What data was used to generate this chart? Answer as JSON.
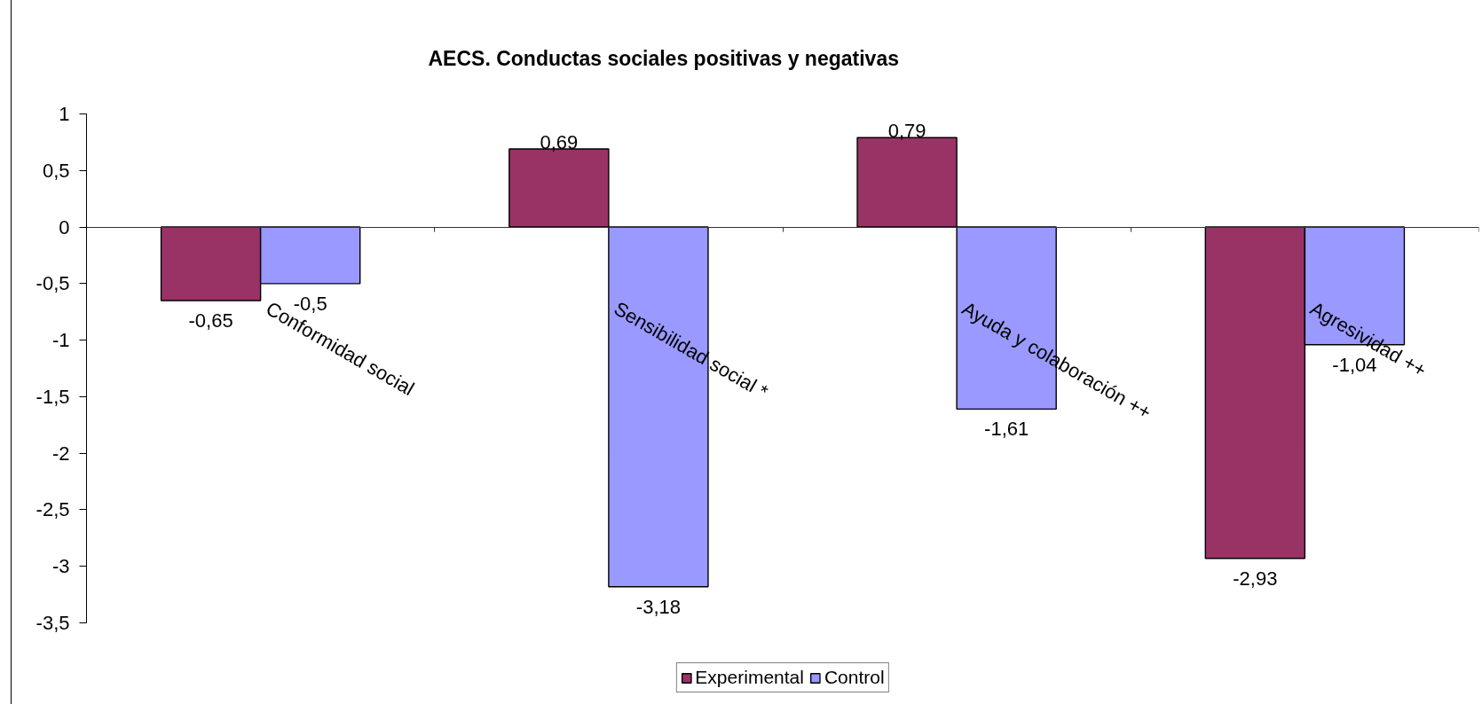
{
  "chart_data": {
    "type": "bar",
    "title": "AECS. Conductas sociales positivas y negativas",
    "categories": [
      "Conformidad social",
      "Sensibilidad social *",
      "Ayuda y colaboración ++",
      "Agresividad ++"
    ],
    "series": [
      {
        "name": "Experimental",
        "color": "#993366",
        "values": [
          -0.65,
          0.69,
          0.79,
          -2.93
        ],
        "value_labels": [
          "-0,65",
          "0,69",
          "0,79",
          "-2,93"
        ]
      },
      {
        "name": "Control",
        "color": "#9999ff",
        "values": [
          -0.5,
          -3.18,
          -1.61,
          -1.04
        ],
        "value_labels": [
          "-0,5",
          "-3,18",
          "-1,61",
          "-1,04"
        ]
      }
    ],
    "ylim": [
      -3.5,
      1
    ],
    "yticks": [
      1,
      {
        "value": 0.5,
        "label": "0,5"
      },
      0,
      {
        "value": -0.5,
        "label": "-0,5"
      },
      -1,
      {
        "value": -1.5,
        "label": "-1,5"
      },
      -2,
      {
        "value": -2.5,
        "label": "-2,5"
      },
      -3,
      {
        "value": -3.5,
        "label": "-3,5"
      }
    ],
    "legend": "bottom"
  }
}
